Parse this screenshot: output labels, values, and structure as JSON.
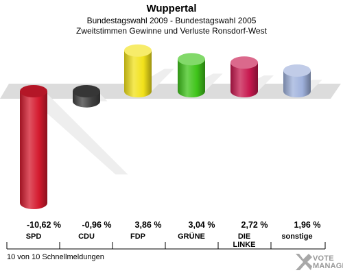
{
  "header": {
    "title": "Wuppertal",
    "subtitle1": "Bundestagswahl 2009 - Bundestagswahl 2005",
    "subtitle2": "Zweitstimmen Gewinne und Verluste Ronsdorf-West"
  },
  "chart_data": {
    "type": "bar",
    "categories": [
      "SPD",
      "CDU",
      "FDP",
      "GRÜNE",
      "DIE LINKE",
      "sonstige"
    ],
    "values": [
      -10.62,
      -0.96,
      3.86,
      3.04,
      2.72,
      1.96
    ],
    "value_labels": [
      "-10,62 %",
      "-0,96 %",
      "3,86 %",
      "3,04 %",
      "2,72 %",
      "1,96 %"
    ],
    "colors": [
      "#d41a2e",
      "#404040",
      "#f2e21a",
      "#3fc41a",
      "#c7184e",
      "#9fb1dc"
    ],
    "grid": false,
    "legend": "none"
  },
  "footer": {
    "text": "10 von 10 Schnellmeldungen"
  },
  "logo": {
    "line1": "VOTE",
    "line2": "MANAGER"
  }
}
